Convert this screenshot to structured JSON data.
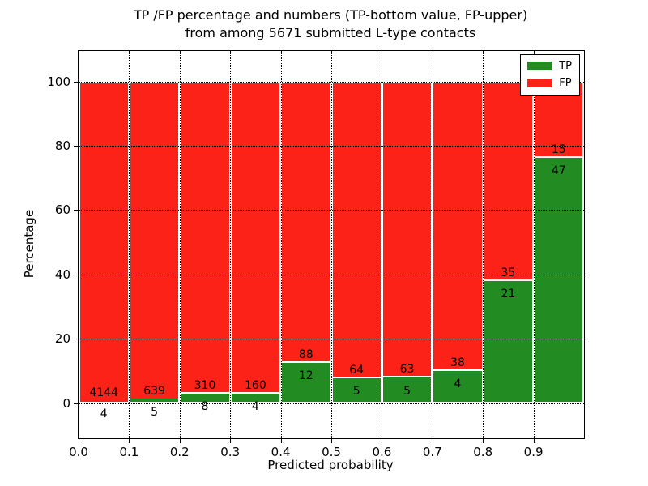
{
  "figure": {
    "title_line1": "TP /FP percentage and numbers (TP-bottom value, FP-upper)",
    "title_line2": "from among 5671 submitted L-type contacts",
    "xlabel": "Predicted probability",
    "ylabel": "Percentage"
  },
  "legend": {
    "position": "upper right",
    "items": [
      {
        "label": "TP",
        "color": "#228b22"
      },
      {
        "label": "FP",
        "color": "#fc2217"
      }
    ]
  },
  "chart_data": {
    "type": "bar",
    "stacked": true,
    "normalized_to_percent": true,
    "title": "TP /FP percentage and numbers (TP-bottom value, FP-upper) from among 5671 submitted L-type contacts",
    "xlabel": "Predicted probability",
    "ylabel": "Percentage",
    "categories": [
      "0.0-0.1",
      "0.1-0.2",
      "0.2-0.3",
      "0.3-0.4",
      "0.4-0.5",
      "0.5-0.6",
      "0.6-0.7",
      "0.7-0.8",
      "0.8-0.9",
      "0.9-1.0"
    ],
    "series": [
      {
        "name": "TP",
        "color": "#228b22",
        "counts": [
          4,
          5,
          8,
          4,
          12,
          5,
          5,
          4,
          21,
          47
        ]
      },
      {
        "name": "FP",
        "color": "#fc2217",
        "counts": [
          4144,
          639,
          310,
          160,
          88,
          64,
          63,
          38,
          35,
          15
        ]
      }
    ],
    "tp_percent_of_bin": [
      0.1,
      0.78,
      2.52,
      2.44,
      12.0,
      7.25,
      7.35,
      9.52,
      37.5,
      75.81
    ],
    "x_tick_labels": [
      "0.0",
      "0.1",
      "0.2",
      "0.3",
      "0.4",
      "0.5",
      "0.6",
      "0.7",
      "0.8",
      "0.9"
    ],
    "y_tick_values": [
      0,
      20,
      40,
      60,
      80,
      100
    ],
    "xlim": [
      0.0,
      1.0
    ],
    "ylim": [
      -10.95,
      109.45
    ],
    "grid": "dotted",
    "legend_position": "upper right"
  }
}
